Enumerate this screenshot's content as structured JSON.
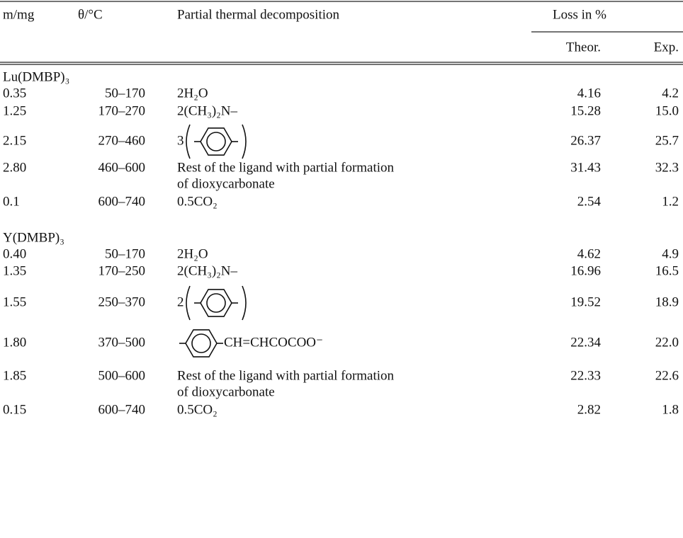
{
  "table": {
    "headers": {
      "mass": "m/mg",
      "temp": "θ/°C",
      "decomposition": "Partial thermal decomposition",
      "loss": "Loss in %",
      "theor": "Theor.",
      "exp": "Exp."
    },
    "groups": [
      {
        "name": "Lu(DMBP)₃",
        "rows": [
          {
            "mass": "0.35",
            "temp": "50–170",
            "decomposition": "2H₂O",
            "theor": "4.16",
            "exp": "4.2"
          },
          {
            "mass": "1.25",
            "temp": "170–270",
            "decomposition": "2(CH₃)₂N–",
            "theor": "15.28",
            "exp": "15.0"
          },
          {
            "mass": "2.15",
            "temp": "270–460",
            "decomposition": {
              "coefficient": "3"
            },
            "theor": "26.37",
            "exp": "25.7"
          },
          {
            "mass": "2.80",
            "temp": "460–600",
            "decomposition": [
              "Rest of the ligand with partial formation",
              "of dioxycarbonate"
            ],
            "theor": "31.43",
            "exp": "32.3"
          },
          {
            "mass": "0.1",
            "temp": "600–740",
            "decomposition": "0.5CO₂",
            "theor": "2.54",
            "exp": "1.2"
          }
        ]
      },
      {
        "name": "Y(DMBP)₃",
        "rows": [
          {
            "mass": "0.40",
            "temp": "50–170",
            "decomposition": "2H₂O",
            "theor": "4.62",
            "exp": "4.9"
          },
          {
            "mass": "1.35",
            "temp": "170–250",
            "decomposition": "2(CH₃)₂N–",
            "theor": "16.96",
            "exp": "16.5"
          },
          {
            "mass": "1.55",
            "temp": "250–370",
            "decomposition": {
              "coefficient": "2"
            },
            "theor": "19.52",
            "exp": "18.9"
          },
          {
            "mass": "1.80",
            "temp": "370–500",
            "decomposition": {
              "substituent": "CH=CHCOCOO⁻"
            },
            "theor": "22.34",
            "exp": "22.0"
          },
          {
            "mass": "1.85",
            "temp": "500–600",
            "decomposition": [
              "Rest of the ligand with partial formation",
              "of dioxycarbonate"
            ],
            "theor": "22.33",
            "exp": "22.6"
          },
          {
            "mass": "0.15",
            "temp": "600–740",
            "decomposition": "0.5CO₂",
            "theor": "2.82",
            "exp": "1.8"
          }
        ]
      }
    ]
  }
}
